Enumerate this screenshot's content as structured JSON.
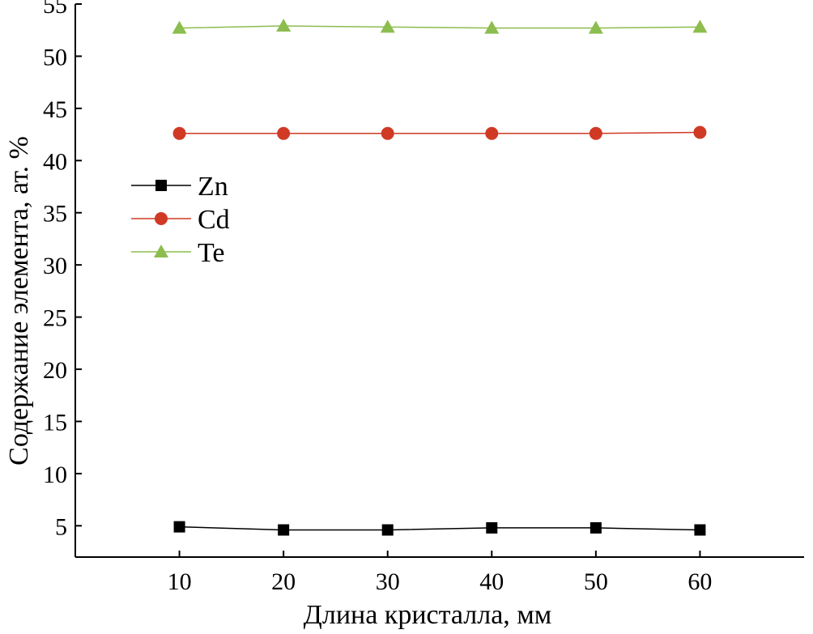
{
  "chart_data": {
    "type": "line",
    "xlabel": "Длина кристалла, мм",
    "ylabel": "Содержание элемента, ат. %",
    "xlim": [
      0,
      70
    ],
    "ylim": [
      2,
      55
    ],
    "xticks": [
      10,
      20,
      30,
      40,
      50,
      60
    ],
    "yticks": [
      5,
      10,
      15,
      20,
      25,
      30,
      35,
      40,
      45,
      50,
      55
    ],
    "grid": false,
    "legend_position": "left",
    "x": [
      10,
      20,
      30,
      40,
      50,
      60
    ],
    "series": [
      {
        "name": "Zn",
        "values": [
          4.9,
          4.6,
          4.6,
          4.8,
          4.8,
          4.6
        ],
        "color": "#000000",
        "marker": "square"
      },
      {
        "name": "Cd",
        "values": [
          42.6,
          42.6,
          42.6,
          42.6,
          42.6,
          42.7
        ],
        "color": "#d03a25",
        "marker": "circle"
      },
      {
        "name": "Te",
        "values": [
          52.7,
          52.9,
          52.8,
          52.7,
          52.7,
          52.8
        ],
        "color": "#8cbd4e",
        "marker": "triangle"
      }
    ]
  }
}
